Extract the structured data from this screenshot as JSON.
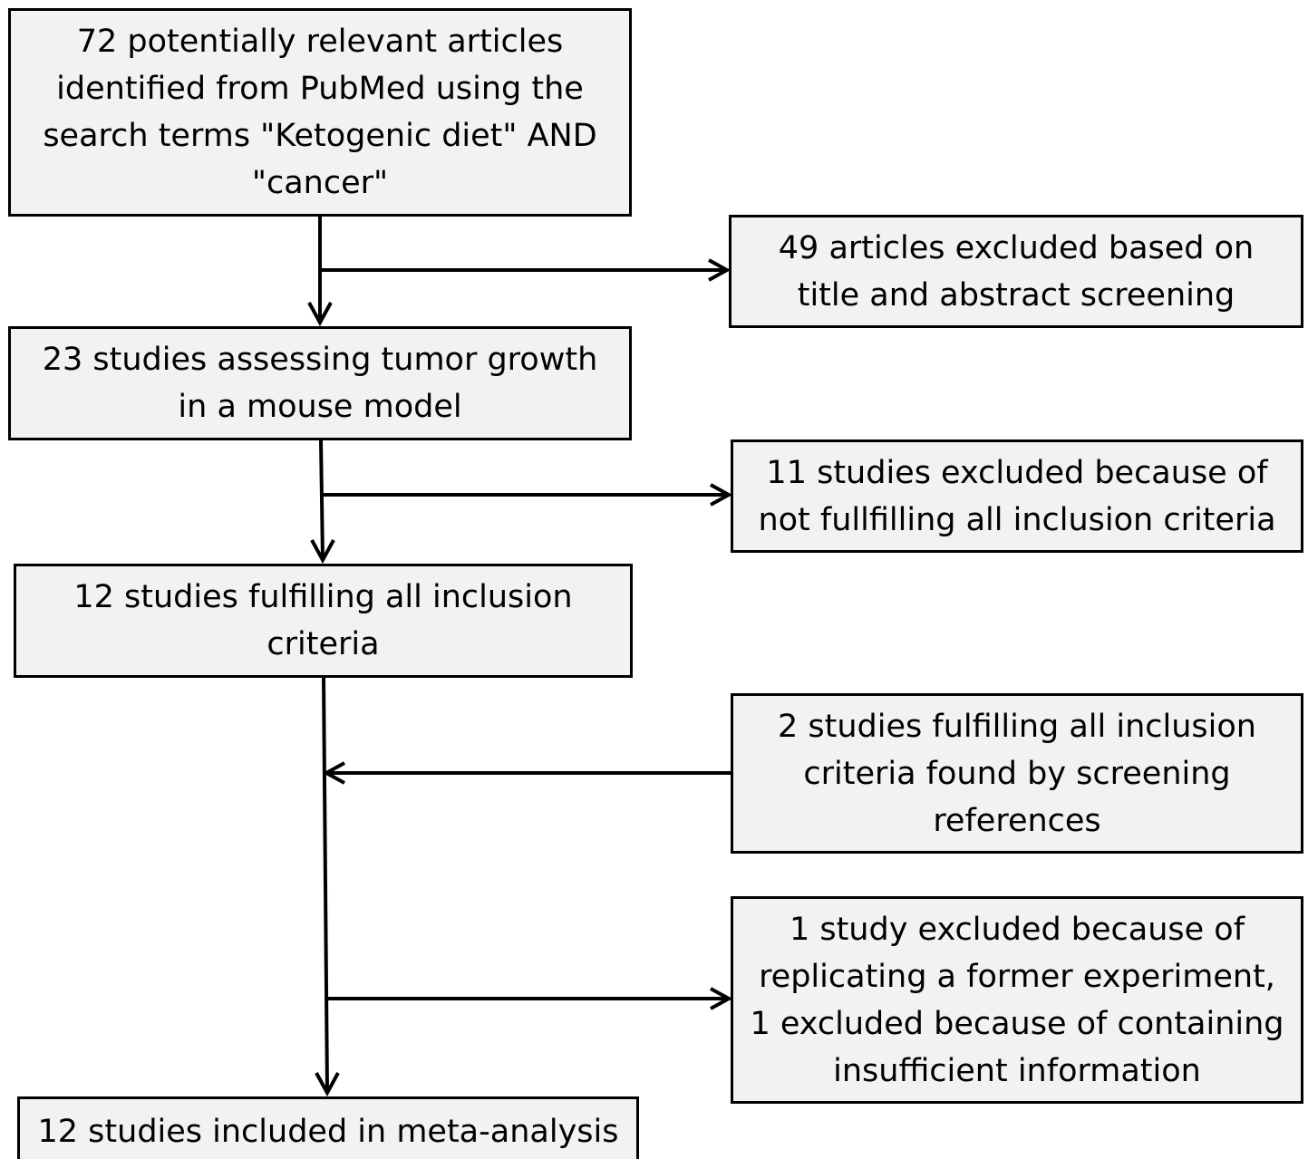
{
  "main_flow": [
    {
      "id": "records-identified",
      "lines": [
        "72 potentially relevant articles",
        "identified from PubMed using the",
        "search terms \"Ketogenic diet\" AND",
        "\"cancer\""
      ]
    },
    {
      "id": "mouse-model-studies",
      "lines": [
        "23 studies assessing tumor growth",
        "in a mouse model"
      ]
    },
    {
      "id": "fulfilling-criteria",
      "lines": [
        "12 studies fulfilling all inclusion",
        "criteria"
      ]
    },
    {
      "id": "included",
      "lines": [
        "12 studies included in meta-analysis"
      ]
    }
  ],
  "side_boxes": [
    {
      "id": "excluded-screening",
      "lines": [
        "49 articles excluded based on",
        "title and abstract screening"
      ]
    },
    {
      "id": "excluded-criteria",
      "lines": [
        "11 studies excluded because of",
        "not fullfilling all inclusion criteria"
      ]
    },
    {
      "id": "added-references",
      "lines": [
        "2 studies fulfilling all inclusion",
        "criteria found by screening",
        "references"
      ]
    },
    {
      "id": "excluded-replication",
      "lines": [
        "1 study excluded because of",
        "replicating a former experiment,",
        "1 excluded because of containing",
        "insufficient information"
      ]
    }
  ],
  "colors": {
    "box_fill": "#f2f2f2",
    "stroke": "#000000",
    "background": "#ffffff"
  }
}
